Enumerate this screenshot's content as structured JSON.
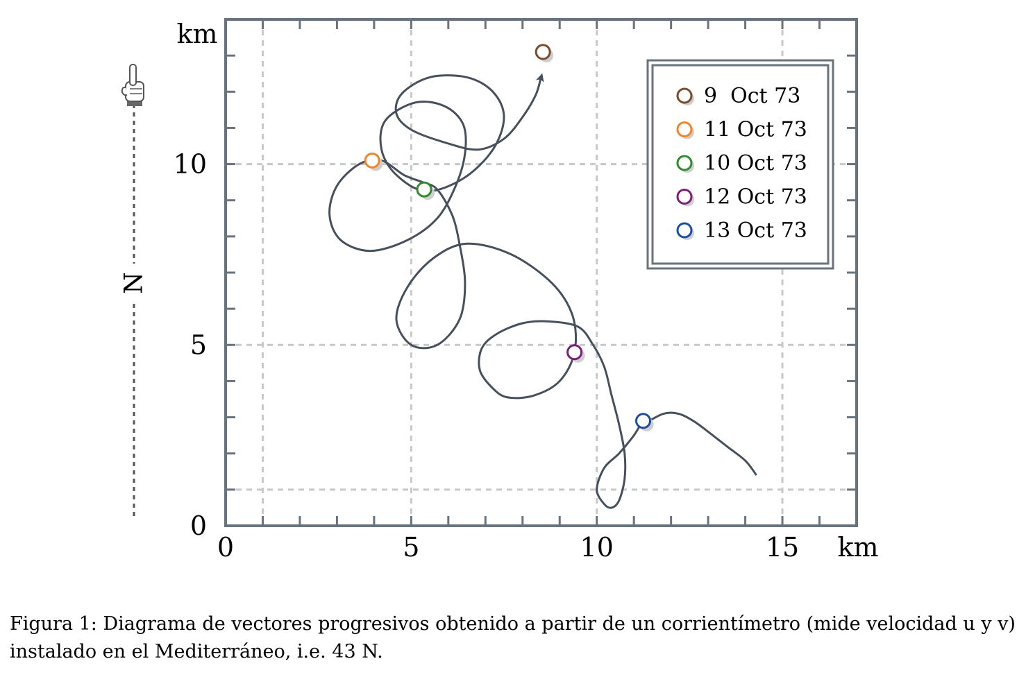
{
  "chart_data": {
    "type": "line",
    "x_unit": "km",
    "y_unit": "km",
    "xlim": [
      0,
      17
    ],
    "ylim": [
      0,
      14
    ],
    "x_ticks": [
      0,
      5,
      10,
      15
    ],
    "y_ticks": [
      0,
      5,
      10
    ],
    "grid": true,
    "legend_position": "top-right",
    "series": [
      {
        "values": [
          [
            14.3,
            1.4
          ],
          [
            14.0,
            1.8
          ],
          [
            13.5,
            2.2
          ],
          [
            13.0,
            2.6
          ],
          [
            12.6,
            2.9
          ],
          [
            12.2,
            3.1
          ],
          [
            11.8,
            3.1
          ],
          [
            11.4,
            2.9
          ],
          [
            11.25,
            2.9
          ],
          [
            11.0,
            2.5
          ],
          [
            10.6,
            2.0
          ],
          [
            10.2,
            1.6
          ],
          [
            10.0,
            1.0
          ],
          [
            10.2,
            0.6
          ],
          [
            10.4,
            0.5
          ],
          [
            10.6,
            0.7
          ],
          [
            10.75,
            1.3
          ],
          [
            10.75,
            2.0
          ],
          [
            10.6,
            2.8
          ],
          [
            10.4,
            3.6
          ],
          [
            10.2,
            4.4
          ],
          [
            9.9,
            5.0
          ],
          [
            9.5,
            5.5
          ],
          [
            8.7,
            5.65
          ],
          [
            8.0,
            5.6
          ],
          [
            7.3,
            5.3
          ],
          [
            6.9,
            4.9
          ],
          [
            6.85,
            4.3
          ],
          [
            7.2,
            3.8
          ],
          [
            7.6,
            3.55
          ],
          [
            8.3,
            3.6
          ],
          [
            9.0,
            4.0
          ],
          [
            9.4,
            4.8
          ],
          [
            9.35,
            5.8
          ],
          [
            8.8,
            6.7
          ],
          [
            7.7,
            7.5
          ],
          [
            6.5,
            7.8
          ],
          [
            5.6,
            7.4
          ],
          [
            4.9,
            6.6
          ],
          [
            4.6,
            5.7
          ],
          [
            5.0,
            5.0
          ],
          [
            5.7,
            5.0
          ],
          [
            6.3,
            5.7
          ],
          [
            6.45,
            6.7
          ],
          [
            6.3,
            7.8
          ],
          [
            6.1,
            8.6
          ],
          [
            5.7,
            9.3
          ],
          [
            5.3,
            9.5
          ],
          [
            4.8,
            9.7
          ],
          [
            4.2,
            10.1
          ],
          [
            3.6,
            10.0
          ],
          [
            3.0,
            9.4
          ],
          [
            2.8,
            8.6
          ],
          [
            3.1,
            7.9
          ],
          [
            3.9,
            7.6
          ],
          [
            4.9,
            7.9
          ],
          [
            5.7,
            8.5
          ],
          [
            6.2,
            9.4
          ],
          [
            6.45,
            10.3
          ],
          [
            6.4,
            11.1
          ],
          [
            5.9,
            11.6
          ],
          [
            5.1,
            11.7
          ],
          [
            4.3,
            11.2
          ],
          [
            4.2,
            10.4
          ],
          [
            4.6,
            9.7
          ],
          [
            5.4,
            9.25
          ],
          [
            6.4,
            9.6
          ],
          [
            7.2,
            10.4
          ],
          [
            7.5,
            11.3
          ],
          [
            7.2,
            12.0
          ],
          [
            6.5,
            12.4
          ],
          [
            5.5,
            12.4
          ],
          [
            4.75,
            11.95
          ],
          [
            4.6,
            11.4
          ],
          [
            5.0,
            10.95
          ],
          [
            5.9,
            10.6
          ],
          [
            6.8,
            10.4
          ],
          [
            7.5,
            10.7
          ],
          [
            8.0,
            11.3
          ],
          [
            8.35,
            11.9
          ],
          [
            8.5,
            12.4
          ]
        ],
        "arrow_at_end": true,
        "color": "#45505c"
      }
    ],
    "markers": [
      {
        "label": "9  Oct 73",
        "x": 8.55,
        "y": 13.1,
        "color": "#7a4a2a"
      },
      {
        "label": "11 Oct 73",
        "x": 3.95,
        "y": 10.1,
        "color": "#f0842a"
      },
      {
        "label": "10 Oct 73",
        "x": 5.35,
        "y": 9.3,
        "color": "#2e8b2e"
      },
      {
        "label": "12 Oct 73",
        "x": 9.4,
        "y": 4.8,
        "color": "#7a1e7a"
      },
      {
        "label": "13 Oct 73",
        "x": 11.25,
        "y": 2.9,
        "color": "#1a4f9e"
      }
    ]
  },
  "north_label": "N",
  "caption": "Figura 1: Diagrama de vectores progresivos obtenido a partir de un corrientímetro (mide velocidad u y v) instalado en el Mediterráneo, i.e. 43 N."
}
